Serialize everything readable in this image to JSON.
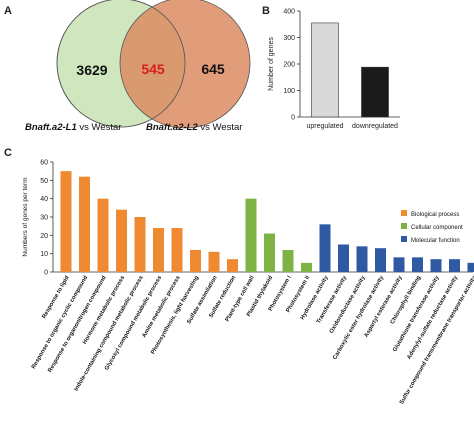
{
  "panels": {
    "a": {
      "letter": "A",
      "left_only": "3629",
      "overlap": "545",
      "right_only": "645",
      "left_label_italic": "Bnaft.a2-L1",
      "left_label_rest": " vs Westar",
      "right_label_italic": "Bnaft.a2-L2",
      "right_label_rest": " vs Westar",
      "colors": {
        "left": "#cfe6bf",
        "right": "#dc8c62",
        "overlap_text": "#d62020"
      }
    },
    "b": {
      "letter": "B"
    },
    "c": {
      "letter": "C"
    }
  },
  "chart_data": [
    {
      "type": "venn",
      "sets": [
        "Bnaft.a2-L1 vs Westar",
        "Bnaft.a2-L2 vs Westar"
      ],
      "values": {
        "left_only": 3629,
        "overlap": 545,
        "right_only": 645
      }
    },
    {
      "type": "bar",
      "categories": [
        "upregulated",
        "downregulated"
      ],
      "values": [
        355,
        188
      ],
      "colors": [
        "#d9d9d9",
        "#1a1a1a"
      ],
      "xlabel": "",
      "ylabel": "Number of genes",
      "ylim": [
        0,
        400
      ],
      "yticks": [
        0,
        100,
        200,
        300,
        400
      ],
      "grid": false
    },
    {
      "type": "bar",
      "ylabel": "Numbers of genes per term",
      "ylim": [
        0,
        60
      ],
      "yticks": [
        0,
        10,
        20,
        30,
        40,
        50,
        60
      ],
      "grid": false,
      "legend_position": "right",
      "series": [
        {
          "name": "Biological process",
          "color": "#ef8a33"
        },
        {
          "name": "Cellular component",
          "color": "#7cb342"
        },
        {
          "name": "Molecular function",
          "color": "#2f5aa3"
        }
      ],
      "categories": [
        "Response to lipid",
        "Response to organic cyclic compound",
        "Response to organonitrogen compound",
        "Hormone metabolic process",
        "Indole-containing compound metabolic process",
        "Glycosyl compound metabolic process",
        "Amine metabolic process",
        "Photosynthesis, light harvesting",
        "Sulfate assimilation",
        "Sulfate reduction",
        "Plant-type cell wall",
        "Plastid thylakoid",
        "Photosystem I",
        "Photosystem II",
        "Hydrolase activity",
        "Transferase activity",
        "Oxidoreductase activity",
        "Carboxylic ester hydrolase activity",
        "Aspartyl esterase activity",
        "Chlorophyll binding",
        "Glutathione transferase activity",
        "Adenylyl-sulfate reductase activity",
        "Sulfur compound transmembrane transporter activity"
      ],
      "values": [
        55,
        52,
        40,
        34,
        30,
        24,
        24,
        12,
        11,
        7,
        40,
        21,
        12,
        5,
        26,
        15,
        14,
        13,
        8,
        8,
        7,
        7,
        5
      ],
      "groups": [
        0,
        0,
        0,
        0,
        0,
        0,
        0,
        0,
        0,
        0,
        1,
        1,
        1,
        1,
        2,
        2,
        2,
        2,
        2,
        2,
        2,
        2,
        2
      ]
    }
  ]
}
